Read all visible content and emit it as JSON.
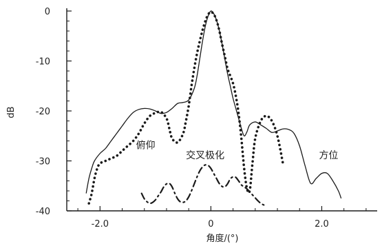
{
  "chart_data": {
    "type": "line",
    "title": "",
    "xlabel": "角度/(°)",
    "ylabel": "dB",
    "xlim": [
      -2.6,
      3.0
    ],
    "ylim": [
      -40,
      0
    ],
    "xticks": [
      -2.0,
      0,
      2.0
    ],
    "xtick_labels": [
      "-2.0",
      "0",
      "2.0"
    ],
    "yticks": [
      0,
      -10,
      -20,
      -30,
      -40
    ],
    "ytick_labels": [
      "0",
      "-10",
      "-20",
      "-30",
      "-40"
    ],
    "grid": false,
    "colors": {
      "line": "#1a1a1a"
    },
    "annotations": [
      {
        "text": "俯仰",
        "x": -1.35,
        "y": -27.5
      },
      {
        "text": "交叉极化",
        "x": -0.45,
        "y": -29.5
      },
      {
        "text": "方位",
        "x": 1.95,
        "y": -29.5
      }
    ],
    "series": [
      {
        "key": "azimuth",
        "style": "solid",
        "x": [
          -2.25,
          -2.2,
          -2.15,
          -2.1,
          -2.0,
          -1.9,
          -1.8,
          -1.7,
          -1.6,
          -1.5,
          -1.4,
          -1.3,
          -1.2,
          -1.1,
          -1.0,
          -0.9,
          -0.8,
          -0.7,
          -0.6,
          -0.5,
          -0.4,
          -0.3,
          -0.25,
          -0.2,
          -0.15,
          -0.1,
          -0.05,
          0.0,
          0.05,
          0.1,
          0.15,
          0.2,
          0.25,
          0.3,
          0.35,
          0.4,
          0.45,
          0.5,
          0.55,
          0.6,
          0.65,
          0.7,
          0.8,
          0.9,
          1.0,
          1.1,
          1.2,
          1.3,
          1.4,
          1.5,
          1.6,
          1.7,
          1.8,
          1.9,
          2.0,
          2.1,
          2.2,
          2.3,
          2.35
        ],
        "y": [
          -36.5,
          -33.5,
          -31.5,
          -30.0,
          -28.5,
          -27.5,
          -26.0,
          -24.5,
          -23.0,
          -21.5,
          -20.3,
          -19.7,
          -19.5,
          -19.6,
          -20.0,
          -20.5,
          -20.3,
          -19.5,
          -18.5,
          -18.3,
          -17.8,
          -15.5,
          -13.0,
          -9.5,
          -6.0,
          -3.0,
          -1.0,
          0.0,
          -0.5,
          -1.8,
          -3.8,
          -6.5,
          -9.5,
          -12.5,
          -15.0,
          -17.5,
          -19.5,
          -21.5,
          -23.5,
          -25.0,
          -24.2,
          -22.8,
          -22.2,
          -22.8,
          -23.5,
          -24.3,
          -24.0,
          -23.6,
          -23.7,
          -24.5,
          -27.0,
          -31.0,
          -34.5,
          -33.5,
          -32.5,
          -32.5,
          -34.0,
          -36.0,
          -37.5
        ]
      },
      {
        "key": "elevation",
        "style": "dotted",
        "x": [
          -2.2,
          -2.15,
          -2.1,
          -2.05,
          -2.0,
          -1.9,
          -1.8,
          -1.7,
          -1.6,
          -1.5,
          -1.4,
          -1.3,
          -1.2,
          -1.1,
          -1.0,
          -0.9,
          -0.8,
          -0.75,
          -0.7,
          -0.6,
          -0.5,
          -0.45,
          -0.4,
          -0.35,
          -0.3,
          -0.25,
          -0.2,
          -0.15,
          -0.1,
          -0.05,
          0.0,
          0.05,
          0.1,
          0.15,
          0.2,
          0.25,
          0.3,
          0.35,
          0.4,
          0.45,
          0.5,
          0.55,
          0.6,
          0.65,
          0.7,
          0.75,
          0.8,
          0.9,
          1.0,
          1.1,
          1.2,
          1.3
        ],
        "y": [
          -38.5,
          -36.5,
          -33.5,
          -31.5,
          -30.5,
          -30.0,
          -29.5,
          -29.0,
          -28.0,
          -27.0,
          -26.0,
          -24.5,
          -22.5,
          -21.0,
          -20.4,
          -20.2,
          -21.5,
          -23.5,
          -25.5,
          -26.3,
          -24.5,
          -22.0,
          -19.0,
          -15.0,
          -11.5,
          -8.5,
          -6.0,
          -3.8,
          -2.0,
          -0.7,
          -0.2,
          -0.6,
          -1.8,
          -3.8,
          -6.5,
          -9.0,
          -11.5,
          -13.0,
          -14.5,
          -17.0,
          -20.5,
          -25.5,
          -31.5,
          -35.5,
          -36.0,
          -30.5,
          -25.5,
          -22.0,
          -21.0,
          -22.0,
          -25.0,
          -30.5
        ]
      },
      {
        "key": "cross-polarization",
        "style": "dashdot",
        "x": [
          -1.25,
          -1.2,
          -1.15,
          -1.1,
          -1.05,
          -1.0,
          -0.95,
          -0.9,
          -0.85,
          -0.8,
          -0.75,
          -0.7,
          -0.65,
          -0.6,
          -0.55,
          -0.5,
          -0.45,
          -0.4,
          -0.35,
          -0.3,
          -0.25,
          -0.2,
          -0.15,
          -0.1,
          -0.05,
          0.0,
          0.05,
          0.1,
          0.15,
          0.2,
          0.25,
          0.3,
          0.35,
          0.4,
          0.45,
          0.5,
          0.55,
          0.6,
          0.65,
          0.7,
          0.75,
          0.8,
          0.85,
          0.9,
          0.95,
          1.0
        ],
        "y": [
          -36.5,
          -37.6,
          -38.2,
          -38.5,
          -38.3,
          -37.8,
          -37.0,
          -36.2,
          -35.2,
          -34.6,
          -34.5,
          -35.2,
          -36.5,
          -37.6,
          -38.2,
          -38.3,
          -38.0,
          -37.2,
          -36.0,
          -34.6,
          -33.2,
          -32.0,
          -31.2,
          -30.8,
          -30.9,
          -31.5,
          -32.5,
          -33.5,
          -34.5,
          -35.1,
          -35.2,
          -34.6,
          -33.6,
          -33.2,
          -33.3,
          -34.0,
          -34.8,
          -35.2,
          -35.6,
          -36.2,
          -36.8,
          -37.4,
          -38.0,
          -38.5,
          -38.8,
          -39.0
        ]
      }
    ]
  }
}
